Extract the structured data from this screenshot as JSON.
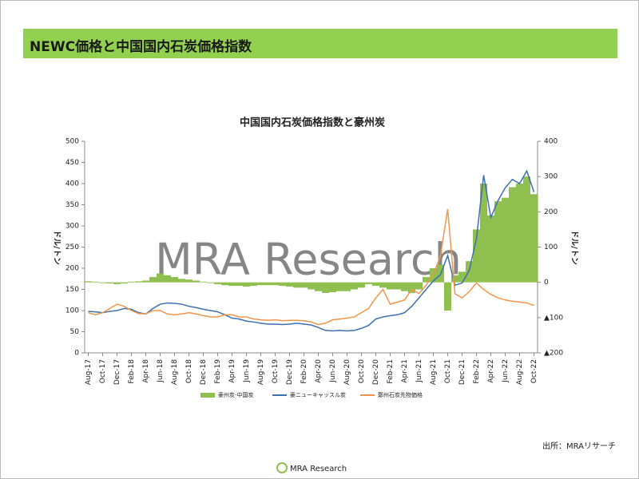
{
  "header": {
    "title": "NEWC価格と中国国内石炭価格指数"
  },
  "chart_data": {
    "type": "bar-line",
    "title": "中国国内石炭価格指数と豪州炭",
    "watermark": "MRA Research",
    "y_label": "ドル/トン",
    "y2_label": "ドル/トン",
    "categories": [
      "Aug-17",
      null,
      "Oct-17",
      null,
      "Dec-17",
      null,
      "Feb-18",
      null,
      "Apr-18",
      null,
      "Jun-18",
      null,
      "Aug-18",
      null,
      "Oct-18",
      null,
      "Dec-18",
      null,
      "Feb-19",
      null,
      "Apr-19",
      null,
      "Jun-19",
      null,
      "Aug-19",
      null,
      "Oct-19",
      null,
      "Dec-19",
      null,
      "Feb-20",
      null,
      "Apr-20",
      null,
      "Jun-20",
      null,
      "Aug-20",
      null,
      "Oct-20",
      null,
      "Dec-20",
      null,
      "Feb-21",
      null,
      "Apr-21",
      null,
      "Jun-21",
      null,
      "Aug-21",
      null,
      "Oct-21",
      null,
      "Dec-21",
      null,
      "Feb-22",
      null,
      "Apr-22",
      null,
      "Jun-22",
      null,
      "Aug-22",
      null,
      "Oct-22"
    ],
    "series": [
      {
        "name": "豪州炭-中国炭",
        "type": "bar",
        "axis": "y2",
        "color": "#8fbf4f",
        "values": [
          3,
          2,
          -2,
          -3,
          -5,
          -3,
          2,
          3,
          5,
          15,
          25,
          20,
          15,
          10,
          8,
          5,
          2,
          -2,
          -5,
          -8,
          -10,
          -10,
          -12,
          -10,
          -8,
          -8,
          -8,
          -10,
          -12,
          -15,
          -15,
          -20,
          -25,
          -30,
          -28,
          -25,
          -25,
          -20,
          -15,
          -5,
          -10,
          -15,
          -20,
          -20,
          -25,
          -30,
          -20,
          15,
          40,
          50,
          -80,
          20,
          30,
          60,
          150,
          280,
          190,
          230,
          240,
          270,
          280,
          300,
          250
        ]
      },
      {
        "name": "豪ニューキャッスル炭",
        "type": "line",
        "color": "#3e6fb0",
        "values": [
          98,
          97,
          95,
          98,
          100,
          105,
          103,
          95,
          92,
          105,
          115,
          118,
          117,
          115,
          110,
          107,
          103,
          100,
          97,
          90,
          82,
          80,
          75,
          73,
          70,
          68,
          68,
          67,
          68,
          70,
          68,
          66,
          60,
          53,
          52,
          53,
          52,
          53,
          58,
          65,
          80,
          85,
          88,
          90,
          95,
          110,
          130,
          150,
          170,
          185,
          230,
          160,
          165,
          195,
          270,
          420,
          320,
          360,
          390,
          410,
          400,
          430,
          380
        ]
      },
      {
        "name": "鄭州石炭先物価格",
        "type": "line",
        "color": "#f0954a",
        "values": [
          95,
          90,
          95,
          105,
          115,
          110,
          100,
          93,
          92,
          100,
          100,
          92,
          90,
          92,
          95,
          92,
          88,
          85,
          85,
          90,
          90,
          85,
          85,
          80,
          78,
          77,
          78,
          76,
          77,
          77,
          76,
          73,
          67,
          70,
          78,
          80,
          82,
          85,
          95,
          105,
          130,
          150,
          115,
          120,
          125,
          150,
          140,
          160,
          185,
          230,
          340,
          140,
          130,
          145,
          165,
          150,
          138,
          130,
          125,
          122,
          120,
          118,
          112
        ]
      }
    ],
    "ylim": [
      0,
      500
    ],
    "yticks": [
      0,
      50,
      100,
      150,
      200,
      250,
      300,
      350,
      400,
      450,
      500
    ],
    "y2lim": [
      -200,
      400
    ],
    "y2ticks": [
      {
        "value": -200,
        "label": "▲200"
      },
      {
        "value": -100,
        "label": "▲100"
      },
      0,
      100,
      200,
      300,
      400
    ],
    "y2_negative_color": "#e00000"
  },
  "source": "出所：MRAリサーチ",
  "logo": "MRA Research"
}
